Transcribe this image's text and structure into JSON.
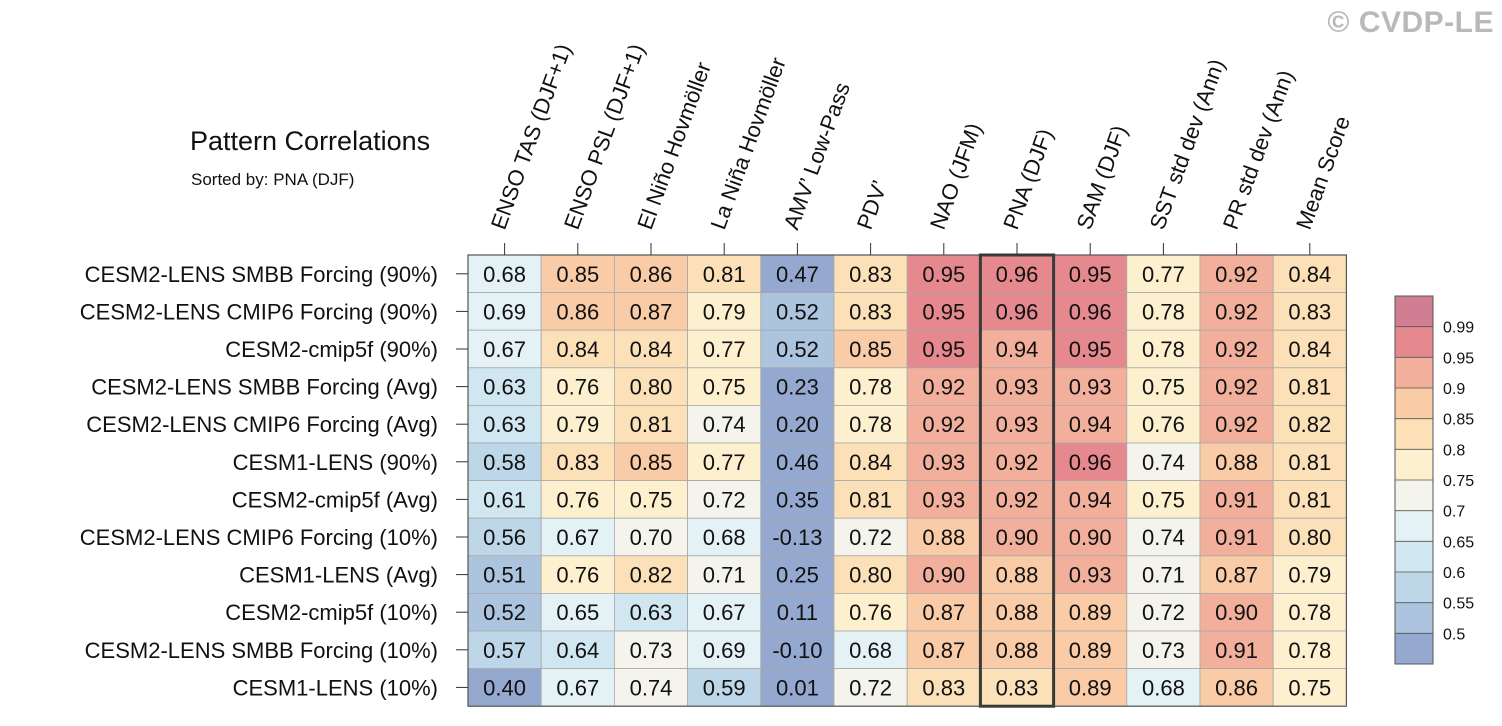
{
  "page": {
    "credit": "© CVDP-LE"
  },
  "chart_data": {
    "type": "heatmap",
    "title": "Pattern Correlations",
    "subtitle": "Sorted by: PNA (DJF)",
    "sorted_column": "PNA (DJF)",
    "columns": [
      "ENSO TAS (DJF+1)",
      "ENSO PSL (DJF+1)",
      "El Niño Hovmöller",
      "La Niña Hovmöller",
      "AMV’ Low-Pass",
      "PDV’",
      "NAO (JFM)",
      "PNA (DJF)",
      "SAM (DJF)",
      "SST std dev (Ann)",
      "PR std dev (Ann)",
      "Mean Score"
    ],
    "rows": [
      "CESM2-LENS SMBB Forcing (90%)",
      "CESM2-LENS CMIP6 Forcing (90%)",
      "CESM2-cmip5f (90%)",
      "CESM2-LENS SMBB Forcing (Avg)",
      "CESM2-LENS CMIP6 Forcing (Avg)",
      "CESM1-LENS (90%)",
      "CESM2-cmip5f (Avg)",
      "CESM2-LENS CMIP6 Forcing (10%)",
      "CESM1-LENS (Avg)",
      "CESM2-cmip5f (10%)",
      "CESM2-LENS SMBB Forcing (10%)",
      "CESM1-LENS (10%)"
    ],
    "values": [
      [
        0.68,
        0.85,
        0.86,
        0.81,
        0.47,
        0.83,
        0.95,
        0.96,
        0.95,
        0.77,
        0.92,
        0.84
      ],
      [
        0.69,
        0.86,
        0.87,
        0.79,
        0.52,
        0.83,
        0.95,
        0.96,
        0.96,
        0.78,
        0.92,
        0.83
      ],
      [
        0.67,
        0.84,
        0.84,
        0.77,
        0.52,
        0.85,
        0.95,
        0.94,
        0.95,
        0.78,
        0.92,
        0.84
      ],
      [
        0.63,
        0.76,
        0.8,
        0.75,
        0.23,
        0.78,
        0.92,
        0.93,
        0.93,
        0.75,
        0.92,
        0.81
      ],
      [
        0.63,
        0.79,
        0.81,
        0.74,
        0.2,
        0.78,
        0.92,
        0.93,
        0.94,
        0.76,
        0.92,
        0.82
      ],
      [
        0.58,
        0.83,
        0.85,
        0.77,
        0.46,
        0.84,
        0.93,
        0.92,
        0.96,
        0.74,
        0.88,
        0.81
      ],
      [
        0.61,
        0.76,
        0.75,
        0.72,
        0.35,
        0.81,
        0.93,
        0.92,
        0.94,
        0.75,
        0.91,
        0.81
      ],
      [
        0.56,
        0.67,
        0.7,
        0.68,
        -0.13,
        0.72,
        0.88,
        0.9,
        0.9,
        0.74,
        0.91,
        0.8
      ],
      [
        0.51,
        0.76,
        0.82,
        0.71,
        0.25,
        0.8,
        0.9,
        0.88,
        0.93,
        0.71,
        0.87,
        0.79
      ],
      [
        0.52,
        0.65,
        0.63,
        0.67,
        0.11,
        0.76,
        0.87,
        0.88,
        0.89,
        0.72,
        0.9,
        0.78
      ],
      [
        0.57,
        0.64,
        0.73,
        0.69,
        -0.1,
        0.68,
        0.87,
        0.88,
        0.89,
        0.73,
        0.91,
        0.78
      ],
      [
        0.4,
        0.67,
        0.74,
        0.59,
        0.01,
        0.72,
        0.83,
        0.83,
        0.89,
        0.68,
        0.86,
        0.75
      ]
    ],
    "colorbar": {
      "labels": [
        "0.99",
        "0.95",
        "0.9",
        "0.85",
        "0.8",
        "0.75",
        "0.7",
        "0.65",
        "0.6",
        "0.55",
        "0.5"
      ],
      "bounds": [
        0.5,
        0.55,
        0.6,
        0.65,
        0.7,
        0.75,
        0.8,
        0.85,
        0.9,
        0.95,
        0.99
      ],
      "colors": [
        "#95a8d0",
        "#acc4de",
        "#bdd7e8",
        "#d0e6f0",
        "#e4f1f5",
        "#f4f4ec",
        "#fdf0cf",
        "#fbe0b8",
        "#f9cba6",
        "#f2b09c",
        "#e5898f",
        "#d17e92"
      ]
    }
  }
}
